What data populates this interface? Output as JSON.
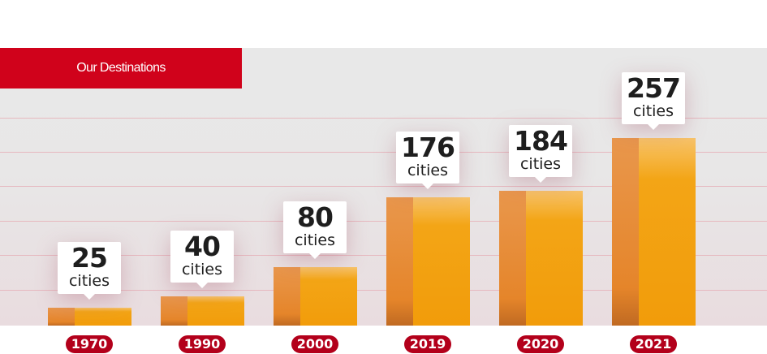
{
  "header": {
    "title": "Our Destinations"
  },
  "colors": {
    "brand_red": "#d0021b",
    "year_pill": "#b3001b",
    "bar_orange": "#f29c0a",
    "bar_dark": "#e5852a"
  },
  "chart_data": {
    "type": "bar",
    "title": "Our Destinations",
    "categories": [
      "1970",
      "1990",
      "2000",
      "2019",
      "2020",
      "2021"
    ],
    "values": [
      25,
      40,
      80,
      176,
      184,
      257
    ],
    "data_labels": [
      "25",
      "40",
      "80",
      "176",
      "184",
      "257"
    ],
    "unit_label": "cities",
    "grid": true
  }
}
